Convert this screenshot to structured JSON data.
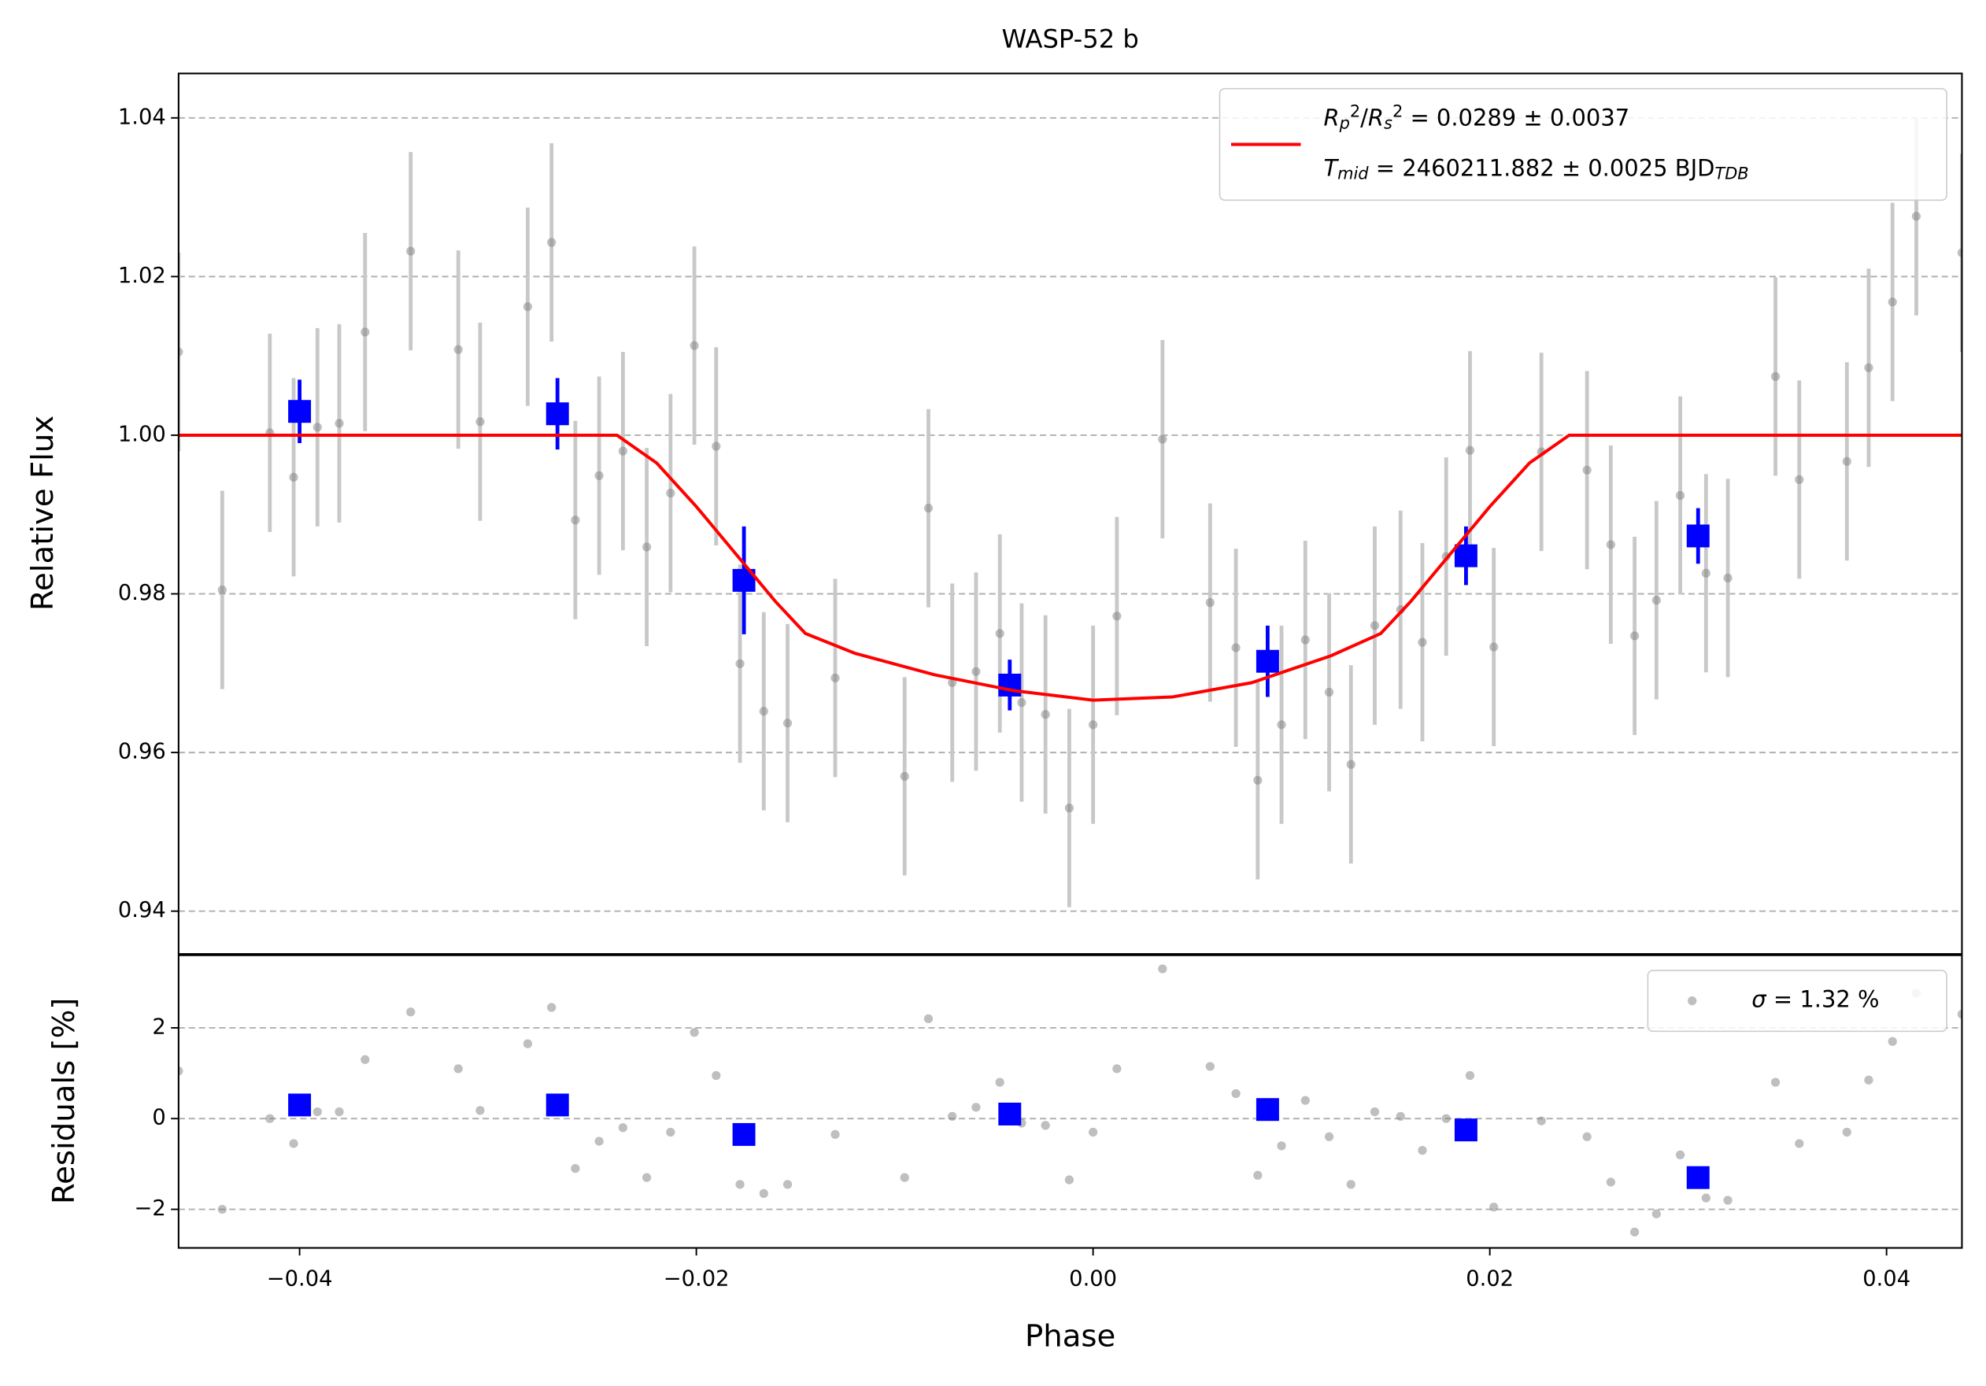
{
  "chart_data": [
    {
      "type": "errorbar",
      "title": "WASP-52 b",
      "y_label": "Relative Flux",
      "xlim": [
        -0.0461,
        0.0438
      ],
      "ylim": [
        0.9346,
        1.0456
      ],
      "yticks": [
        0.94,
        0.96,
        0.98,
        {
          "value": 1.0,
          "label": "1.00"
        },
        1.02,
        1.04
      ],
      "grid": true,
      "legend": "upper right",
      "series": [
        {
          "kind": "points",
          "color": "#808080",
          "errcolor": "#c8c8c8",
          "yerr": 0.0125,
          "x": [
            -0.0461,
            -0.0439,
            -0.0415,
            -0.0403,
            -0.0391,
            -0.038,
            -0.0367,
            -0.0344,
            -0.032,
            -0.0309,
            -0.0285,
            -0.0273,
            -0.0261,
            -0.0249,
            -0.0237,
            -0.0225,
            -0.0213,
            -0.0201,
            -0.019,
            -0.0178,
            -0.0166,
            -0.0154,
            -0.013,
            -0.0095,
            -0.0083,
            -0.0071,
            -0.0059,
            -0.0047,
            -0.0036,
            -0.0024,
            -0.0012,
            0.0,
            0.0012,
            0.0035,
            0.0059,
            0.0072,
            0.0083,
            0.0095,
            0.0107,
            0.0119,
            0.013,
            0.0142,
            0.0155,
            0.0166,
            0.0178,
            0.019,
            0.0202,
            0.0226,
            0.0249,
            0.0261,
            0.0273,
            0.0284,
            0.0296,
            0.0309,
            0.032,
            0.0344,
            0.0356,
            0.038,
            0.0391,
            0.0403,
            0.0415,
            0.0438
          ],
          "y": [
            1.0105,
            0.9805,
            1.0003,
            0.9947,
            1.001,
            1.0015,
            1.013,
            1.0232,
            1.0108,
            1.0017,
            1.0162,
            1.0243,
            0.9893,
            0.9949,
            0.998,
            0.9859,
            0.9927,
            1.0113,
            0.9986,
            0.9712,
            0.9652,
            0.9637,
            0.9694,
            0.957,
            0.9908,
            0.9688,
            0.9702,
            0.975,
            0.9663,
            0.9648,
            0.953,
            0.9635,
            0.9772,
            0.9995,
            0.9789,
            0.9732,
            0.9565,
            0.9635,
            0.9742,
            0.9676,
            0.9585,
            0.976,
            0.978,
            0.9739,
            0.9847,
            0.9981,
            0.9733,
            0.9979,
            0.9956,
            0.9862,
            0.9747,
            0.9792,
            0.9924,
            0.9826,
            0.982,
            1.0074,
            0.9944,
            0.9967,
            1.0085,
            1.0168,
            1.0276,
            1.023
          ]
        },
        {
          "kind": "binned",
          "color": "#0000ff",
          "x": [
            -0.04,
            -0.027,
            -0.0176,
            -0.0042,
            0.0088,
            0.0188,
            0.0305
          ],
          "y": [
            1.003,
            1.0027,
            0.9817,
            0.9685,
            0.9715,
            0.9848,
            0.9873
          ],
          "yerr": [
            0.004,
            0.0045,
            0.0068,
            0.0032,
            0.0045,
            0.0037,
            0.0035
          ]
        },
        {
          "kind": "line",
          "color": "#ff0000",
          "name": [
            [
              {
                "text": "R",
                "style": "italic"
              },
              {
                "text": "p",
                "style": "sub"
              },
              {
                "text": "2",
                "style": "sup"
              },
              {
                "text": "/",
                "style": ""
              },
              {
                "text": "R",
                "style": "italic"
              },
              {
                "text": "s",
                "style": "sub"
              },
              {
                "text": "2",
                "style": "sup"
              },
              {
                "text": " = 0.0289 ± 0.0037",
                "style": ""
              }
            ],
            [
              {
                "text": "T",
                "style": "italic"
              },
              {
                "text": "mid",
                "style": "sub"
              },
              {
                "text": " = 2460211.882 ± 0.0025 BJD",
                "style": ""
              },
              {
                "text": "TDB",
                "style": "sub"
              }
            ]
          ],
          "x": [
            -0.0461,
            -0.024,
            -0.022,
            -0.02,
            -0.018,
            -0.016,
            -0.0145,
            -0.012,
            -0.008,
            -0.004,
            0.0,
            0.004,
            0.008,
            0.012,
            0.0145,
            0.016,
            0.018,
            0.02,
            0.022,
            0.024,
            0.0438
          ],
          "y": [
            1.0,
            1.0,
            0.9965,
            0.991,
            0.985,
            0.979,
            0.975,
            0.9725,
            0.9698,
            0.9678,
            0.9666,
            0.967,
            0.9688,
            0.9722,
            0.975,
            0.979,
            0.985,
            0.991,
            0.9965,
            1.0,
            1.0
          ]
        }
      ]
    },
    {
      "type": "scatter",
      "y_label": "Residuals [%]",
      "x_label": "Phase",
      "xlim": [
        -0.0461,
        0.0438
      ],
      "ylim": [
        -2.85,
        3.6
      ],
      "xticks": [
        {
          "value": -0.04,
          "label": "−0.04"
        },
        {
          "value": -0.02,
          "label": "−0.02"
        },
        {
          "value": 0,
          "label": "0.00"
        },
        {
          "value": 0.02,
          "label": "0.02"
        },
        {
          "value": 0.04,
          "label": "0.04"
        }
      ],
      "yticks": [
        {
          "value": -2,
          "label": "−2"
        },
        0,
        2
      ],
      "grid": true,
      "legend": "upper right",
      "series": [
        {
          "kind": "points",
          "color": "#808080",
          "name": [
            [
              {
                "text": "σ",
                "style": "italic"
              },
              {
                "text": " = 1.32 %",
                "style": ""
              }
            ]
          ],
          "x": [
            -0.0461,
            -0.0439,
            -0.0415,
            -0.0403,
            -0.0391,
            -0.038,
            -0.0367,
            -0.0344,
            -0.032,
            -0.0309,
            -0.0285,
            -0.0273,
            -0.0261,
            -0.0249,
            -0.0237,
            -0.0225,
            -0.0213,
            -0.0201,
            -0.019,
            -0.0178,
            -0.0166,
            -0.0154,
            -0.013,
            -0.0095,
            -0.0083,
            -0.0071,
            -0.0059,
            -0.0047,
            -0.0036,
            -0.0024,
            -0.0012,
            0.0,
            0.0012,
            0.0035,
            0.0059,
            0.0072,
            0.0083,
            0.0095,
            0.0107,
            0.0119,
            0.013,
            0.0142,
            0.0155,
            0.0166,
            0.0178,
            0.019,
            0.0202,
            0.0226,
            0.0249,
            0.0261,
            0.0273,
            0.0284,
            0.0296,
            0.0309,
            0.032,
            0.0344,
            0.0356,
            0.038,
            0.0391,
            0.0403,
            0.0415,
            0.0438
          ],
          "y": [
            1.05,
            -2.0,
            0.0,
            -0.55,
            0.15,
            0.15,
            1.3,
            2.35,
            1.1,
            0.18,
            1.65,
            2.45,
            -1.1,
            -0.5,
            -0.2,
            -1.3,
            -0.3,
            1.9,
            0.95,
            -1.45,
            -1.65,
            -1.45,
            -0.35,
            -1.3,
            2.2,
            0.05,
            0.25,
            0.8,
            -0.1,
            -0.15,
            -1.35,
            -0.3,
            1.1,
            3.3,
            1.15,
            0.55,
            -1.25,
            -0.6,
            0.4,
            -0.4,
            -1.45,
            0.15,
            0.05,
            -0.7,
            0.0,
            0.95,
            -1.95,
            -0.05,
            -0.4,
            -1.4,
            -2.5,
            -2.1,
            -0.8,
            -1.75,
            -1.8,
            0.8,
            -0.55,
            -0.3,
            0.85,
            1.7,
            2.76,
            2.3
          ]
        },
        {
          "kind": "binned",
          "color": "#0000ff",
          "x": [
            -0.04,
            -0.027,
            -0.0176,
            -0.0042,
            0.0088,
            0.0188,
            0.0305
          ],
          "y": [
            0.3,
            0.3,
            -0.35,
            0.1,
            0.2,
            -0.25,
            -1.3
          ]
        }
      ]
    }
  ]
}
